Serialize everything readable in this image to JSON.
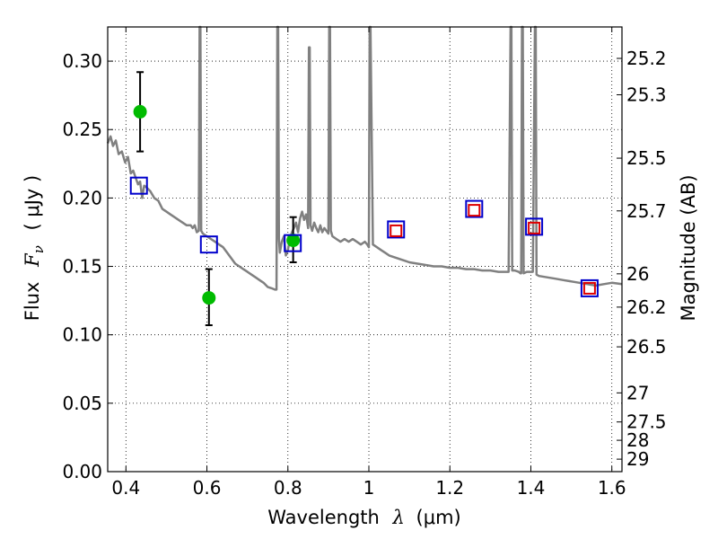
{
  "chart_data": {
    "type": "scatter",
    "xlabel": "Wavelength",
    "xlabel_symbol": "λ",
    "xlabel_unit": "(μm)",
    "ylabel": "Flux",
    "ylabel_symbol": "F",
    "ylabel_subscript": "ν",
    "ylabel_unit": "( μJy )",
    "y2label": "Magnitude (AB)",
    "xlim": [
      0.355,
      1.625
    ],
    "ylim": [
      0.0,
      0.325
    ],
    "grid": true,
    "grid_style": "dotted",
    "x_ticks": [
      0.4,
      0.6,
      0.8,
      1.0,
      1.2,
      1.4,
      1.6
    ],
    "x_tick_labels": [
      "0.4",
      "0.6",
      "0.8",
      "1",
      "1.2",
      "1.4",
      "1.6"
    ],
    "y_ticks": [
      0.0,
      0.05,
      0.1,
      0.15,
      0.2,
      0.25,
      0.3
    ],
    "y_tick_labels": [
      "0.00",
      "0.05",
      "0.10",
      "0.15",
      "0.20",
      "0.25",
      "0.30"
    ],
    "mag_ticks": [
      25.2,
      25.3,
      25.5,
      25.7,
      26,
      26.2,
      26.5,
      27,
      27.5,
      28,
      29
    ],
    "mag_tick_labels": [
      "25.2",
      "25.3",
      "25.5",
      "25.7",
      "26",
      "26.2",
      "26.5",
      "27",
      "27.5",
      "28",
      "29"
    ],
    "series": [
      {
        "kind": "line",
        "color": "#808080",
        "x": [
          0.355,
          0.362,
          0.368,
          0.375,
          0.382,
          0.39,
          0.398,
          0.405,
          0.412,
          0.418,
          0.425,
          0.43,
          0.435,
          0.44,
          0.445,
          0.45,
          0.46,
          0.47,
          0.48,
          0.49,
          0.5,
          0.51,
          0.52,
          0.53,
          0.54,
          0.55,
          0.56,
          0.565,
          0.57,
          0.575,
          0.58,
          0.582,
          0.584,
          0.586,
          0.59,
          0.6,
          0.61,
          0.62,
          0.63,
          0.64,
          0.65,
          0.66,
          0.67,
          0.68,
          0.69,
          0.7,
          0.71,
          0.72,
          0.73,
          0.74,
          0.75,
          0.76,
          0.768,
          0.772,
          0.774,
          0.776,
          0.778,
          0.78,
          0.785,
          0.79,
          0.795,
          0.8,
          0.805,
          0.81,
          0.815,
          0.82,
          0.825,
          0.83,
          0.835,
          0.84,
          0.845,
          0.85,
          0.852,
          0.854,
          0.856,
          0.86,
          0.865,
          0.87,
          0.875,
          0.88,
          0.885,
          0.89,
          0.895,
          0.9,
          0.902,
          0.904,
          0.906,
          0.91,
          0.92,
          0.93,
          0.94,
          0.95,
          0.96,
          0.97,
          0.98,
          0.99,
          0.996,
          1.0,
          1.002,
          1.004,
          1.01,
          1.02,
          1.03,
          1.04,
          1.05,
          1.06,
          1.07,
          1.08,
          1.09,
          1.1,
          1.12,
          1.14,
          1.16,
          1.18,
          1.2,
          1.22,
          1.24,
          1.26,
          1.28,
          1.3,
          1.32,
          1.34,
          1.345,
          1.35,
          1.352,
          1.354,
          1.36,
          1.37,
          1.374,
          1.376,
          1.378,
          1.38,
          1.382,
          1.39,
          1.4,
          1.405,
          1.41,
          1.412,
          1.414,
          1.42,
          1.44,
          1.46,
          1.48,
          1.5,
          1.52,
          1.54,
          1.56,
          1.58,
          1.6,
          1.625
        ],
        "values": [
          0.24,
          0.245,
          0.238,
          0.242,
          0.232,
          0.234,
          0.226,
          0.23,
          0.218,
          0.22,
          0.214,
          0.21,
          0.212,
          0.2,
          0.209,
          0.208,
          0.205,
          0.2,
          0.198,
          0.192,
          0.19,
          0.188,
          0.186,
          0.184,
          0.182,
          0.18,
          0.18,
          0.178,
          0.18,
          0.175,
          0.176,
          0.325,
          0.325,
          0.176,
          0.174,
          0.172,
          0.17,
          0.168,
          0.166,
          0.164,
          0.16,
          0.156,
          0.152,
          0.15,
          0.148,
          0.146,
          0.144,
          0.142,
          0.14,
          0.138,
          0.135,
          0.134,
          0.133,
          0.133,
          0.325,
          0.325,
          0.17,
          0.16,
          0.168,
          0.172,
          0.158,
          0.162,
          0.17,
          0.175,
          0.178,
          0.182,
          0.175,
          0.185,
          0.19,
          0.184,
          0.188,
          0.178,
          0.31,
          0.31,
          0.18,
          0.176,
          0.182,
          0.178,
          0.175,
          0.18,
          0.175,
          0.178,
          0.176,
          0.174,
          0.325,
          0.325,
          0.176,
          0.172,
          0.17,
          0.168,
          0.17,
          0.168,
          0.17,
          0.168,
          0.166,
          0.168,
          0.166,
          0.164,
          0.325,
          0.325,
          0.166,
          0.164,
          0.162,
          0.16,
          0.158,
          0.157,
          0.156,
          0.155,
          0.154,
          0.153,
          0.152,
          0.151,
          0.15,
          0.15,
          0.149,
          0.149,
          0.148,
          0.148,
          0.147,
          0.147,
          0.146,
          0.146,
          0.146,
          0.325,
          0.325,
          0.147,
          0.147,
          0.146,
          0.145,
          0.145,
          0.325,
          0.325,
          0.145,
          0.146,
          0.146,
          0.146,
          0.325,
          0.325,
          0.144,
          0.143,
          0.142,
          0.141,
          0.14,
          0.139,
          0.138,
          0.137,
          0.136,
          0.137,
          0.138,
          0.137
        ]
      },
      {
        "kind": "points",
        "marker": "circle",
        "color": "#00bb00",
        "x": [
          0.435,
          0.605,
          0.813
        ],
        "values": [
          0.263,
          0.127,
          0.169
        ],
        "err_lo": [
          0.234,
          0.107,
          0.153
        ],
        "err_hi": [
          0.292,
          0.148,
          0.186
        ]
      },
      {
        "kind": "points",
        "marker": "square-open",
        "color": "#0000cc",
        "x": [
          0.432,
          0.605,
          0.812,
          1.067,
          1.26,
          1.408,
          1.545
        ],
        "values": [
          0.209,
          0.166,
          0.167,
          0.177,
          0.192,
          0.179,
          0.134
        ]
      },
      {
        "kind": "points",
        "marker": "square-open",
        "color": "#dd0000",
        "x": [
          1.067,
          1.26,
          1.408,
          1.545
        ],
        "values": [
          0.176,
          0.191,
          0.178,
          0.134
        ]
      }
    ]
  }
}
